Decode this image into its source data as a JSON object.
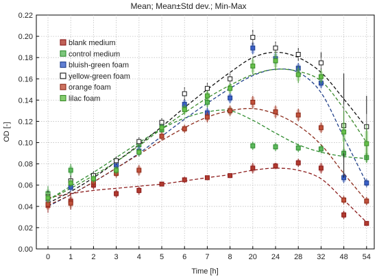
{
  "chart_data": {
    "type": "scatter",
    "title": "Mean;  Mean±Std dev.; Min-Max",
    "xlabel": "Time [h]",
    "ylabel": "OD [-]",
    "categories": [
      "0",
      "1",
      "2",
      "3",
      "4",
      "5",
      "6",
      "7",
      "8",
      "20",
      "24",
      "28",
      "32",
      "48",
      "54"
    ],
    "ylim": [
      0.0,
      0.22
    ],
    "yticks": [
      0.0,
      0.02,
      0.04,
      0.06,
      0.08,
      0.1,
      0.12,
      0.14,
      0.16,
      0.18,
      0.2,
      0.22
    ],
    "ytick_labels": [
      "0.00",
      "0.02",
      "0.04",
      "0.06",
      "0.08",
      "0.10",
      "0.12",
      "0.14",
      "0.16",
      "0.18",
      "0.20",
      "0.22"
    ],
    "grid": true,
    "legend_position": "top-left",
    "series": [
      {
        "name": "blank medium",
        "color": "#8b1a1a",
        "fill": "#b03a2e",
        "values": [
          0.041,
          0.045,
          0.06,
          0.052,
          0.055,
          0.061,
          0.065,
          0.067,
          0.069,
          0.076,
          0.078,
          0.081,
          0.076,
          0.032,
          0.024
        ],
        "err": [
          0.004,
          0.004,
          0.003,
          0.003,
          0.003,
          0.002,
          0.002,
          0.002,
          0.002,
          0.004,
          0.003,
          0.003,
          0.004,
          0.003,
          0.002
        ],
        "minmax": [
          0.007,
          0.008,
          0.004,
          0.004,
          0.004,
          0.002,
          0.003,
          0.002,
          0.002,
          0.005,
          0.003,
          0.004,
          0.005,
          0.004,
          0.002
        ]
      },
      {
        "name": "control medium",
        "color": "#2e8b2e",
        "fill": "#5cb85c",
        "values": [
          0.052,
          0.074,
          0.068,
          0.079,
          0.098,
          0.112,
          0.133,
          0.138,
          0.13,
          0.097,
          0.096,
          0.095,
          0.094,
          0.09,
          0.086
        ],
        "err": [
          0.004,
          0.004,
          0.003,
          0.003,
          0.003,
          0.003,
          0.004,
          0.004,
          0.003,
          0.003,
          0.003,
          0.003,
          0.003,
          0.004,
          0.004
        ],
        "minmax": [
          0.007,
          0.006,
          0.004,
          0.004,
          0.004,
          0.004,
          0.005,
          0.005,
          0.004,
          0.004,
          0.004,
          0.004,
          0.004,
          0.005,
          0.005
        ]
      },
      {
        "name": "bluish-green foam",
        "color": "#1f3f8a",
        "fill": "#3a5fc8",
        "values": [
          0.047,
          0.058,
          0.067,
          0.079,
          0.092,
          0.117,
          0.136,
          0.128,
          0.142,
          0.189,
          0.179,
          0.17,
          0.156,
          0.067,
          0.062
        ],
        "err": [
          0.003,
          0.003,
          0.003,
          0.003,
          0.004,
          0.003,
          0.004,
          0.004,
          0.004,
          0.005,
          0.005,
          0.004,
          0.004,
          0.004,
          0.003
        ],
        "minmax": [
          0.004,
          0.004,
          0.004,
          0.004,
          0.005,
          0.004,
          0.005,
          0.005,
          0.005,
          0.006,
          0.006,
          0.005,
          0.005,
          0.005,
          0.004
        ]
      },
      {
        "name": "yellow-green foam",
        "color": "#111111",
        "fill": "#ffffff",
        "values": [
          0.049,
          0.064,
          0.069,
          0.083,
          0.101,
          0.119,
          0.146,
          0.151,
          0.16,
          0.199,
          0.189,
          0.183,
          0.175,
          0.116,
          0.115
        ],
        "err": [
          0.004,
          0.003,
          0.003,
          0.003,
          0.003,
          0.003,
          0.005,
          0.004,
          0.004,
          0.005,
          0.005,
          0.004,
          0.005,
          0.02,
          0.012
        ],
        "minmax": [
          0.006,
          0.005,
          0.004,
          0.004,
          0.004,
          0.004,
          0.006,
          0.005,
          0.005,
          0.007,
          0.006,
          0.006,
          0.01,
          0.049,
          0.029
        ]
      },
      {
        "name": "orange foam",
        "color": "#8b2a1a",
        "fill": "#c0503a",
        "values": [
          0.042,
          0.043,
          0.063,
          0.071,
          0.074,
          0.106,
          0.113,
          0.124,
          0.13,
          0.138,
          0.129,
          0.126,
          0.114,
          0.046,
          0.045
        ],
        "err": [
          0.004,
          0.004,
          0.003,
          0.003,
          0.004,
          0.003,
          0.003,
          0.004,
          0.004,
          0.005,
          0.005,
          0.005,
          0.004,
          0.003,
          0.003
        ],
        "minmax": [
          0.006,
          0.006,
          0.004,
          0.004,
          0.005,
          0.004,
          0.004,
          0.005,
          0.005,
          0.006,
          0.006,
          0.006,
          0.005,
          0.004,
          0.004
        ]
      },
      {
        "name": "lilac foam",
        "color": "#3a8a2a",
        "fill": "#66c04a",
        "values": [
          0.048,
          0.062,
          0.066,
          0.074,
          0.091,
          0.114,
          0.131,
          0.144,
          0.151,
          0.172,
          0.177,
          0.164,
          0.162,
          0.11,
          0.099
        ],
        "err": [
          0.004,
          0.003,
          0.003,
          0.003,
          0.003,
          0.003,
          0.004,
          0.004,
          0.004,
          0.006,
          0.006,
          0.006,
          0.005,
          0.009,
          0.012
        ],
        "minmax": [
          0.005,
          0.004,
          0.004,
          0.004,
          0.004,
          0.004,
          0.005,
          0.005,
          0.005,
          0.008,
          0.009,
          0.008,
          0.007,
          0.02,
          0.018
        ]
      }
    ],
    "fits": [
      {
        "series": "blank medium",
        "values": [
          0.048,
          0.052,
          0.055,
          0.057,
          0.059,
          0.061,
          0.064,
          0.067,
          0.07,
          0.074,
          0.076,
          0.074,
          0.066,
          0.046,
          0.025
        ]
      },
      {
        "series": "control medium",
        "values": [
          0.046,
          0.059,
          0.072,
          0.086,
          0.1,
          0.113,
          0.123,
          0.129,
          0.13,
          0.121,
          0.109,
          0.098,
          0.091,
          0.087,
          0.085
        ]
      },
      {
        "series": "bluish-green foam",
        "values": [
          0.04,
          0.051,
          0.063,
          0.076,
          0.09,
          0.106,
          0.122,
          0.137,
          0.151,
          0.163,
          0.169,
          0.166,
          0.147,
          0.105,
          0.062
        ]
      },
      {
        "series": "yellow-green foam",
        "values": [
          0.043,
          0.054,
          0.067,
          0.082,
          0.098,
          0.115,
          0.133,
          0.15,
          0.166,
          0.18,
          0.185,
          0.18,
          0.166,
          0.141,
          0.114
        ]
      },
      {
        "series": "orange foam",
        "values": [
          0.041,
          0.051,
          0.063,
          0.076,
          0.089,
          0.102,
          0.114,
          0.124,
          0.13,
          0.132,
          0.127,
          0.116,
          0.098,
          0.071,
          0.045
        ]
      },
      {
        "series": "lilac foam",
        "values": [
          0.046,
          0.057,
          0.069,
          0.082,
          0.097,
          0.113,
          0.128,
          0.142,
          0.154,
          0.164,
          0.169,
          0.167,
          0.158,
          0.132,
          0.1
        ]
      }
    ]
  }
}
